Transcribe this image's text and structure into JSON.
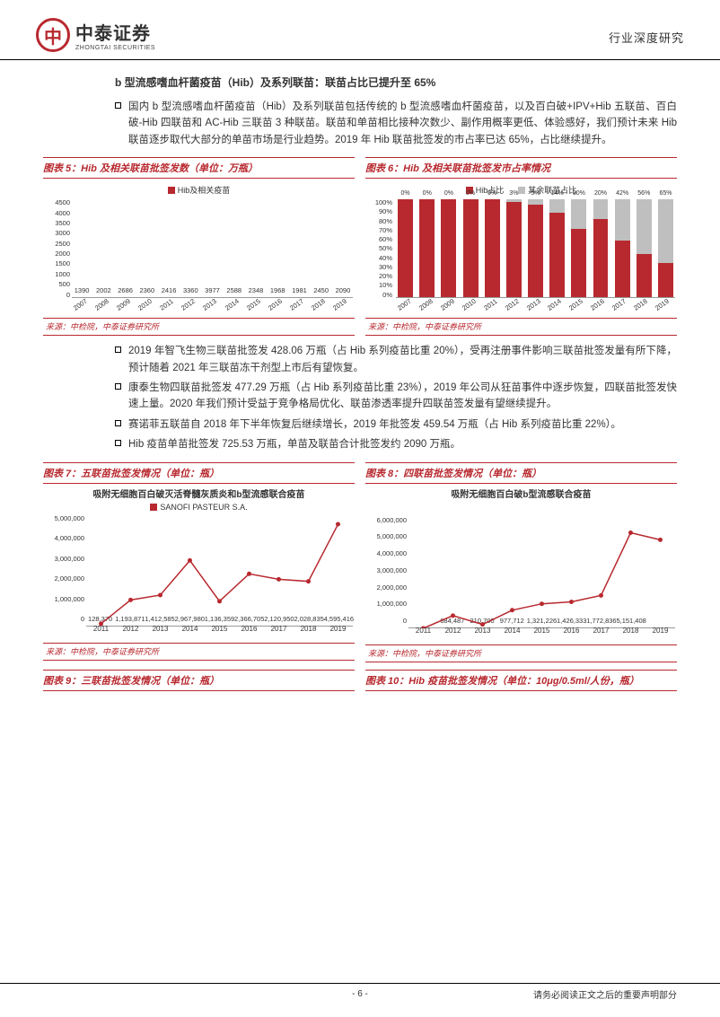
{
  "header": {
    "company_cn": "中泰证券",
    "company_en": "ZHONGTAI SECURITIES",
    "category": "行业深度研究"
  },
  "colors": {
    "brand": "#b8292f",
    "grey": "#bfbfbf",
    "text": "#333333"
  },
  "section_title": "b 型流感嗜血杆菌疫苗（Hib）及系列联苗：联苗占比已提升至 65%",
  "para1": "国内 b 型流感嗜血杆菌疫苗（Hib）及系列联苗包括传统的 b 型流感嗜血杆菌疫苗，以及百白破+IPV+Hib 五联苗、百白破-Hib 四联苗和 AC-Hib 三联苗 3 种联苗。联苗和单苗相比接种次数少、副作用概率更低、体验感好，我们预计未来 Hib 联苗逐步取代大部分的单苗市场是行业趋势。2019 年 Hib 联苗批签发的市占率已达 65%，占比继续提升。",
  "bullets2": [
    "2019 年智飞生物三联苗批签发 428.06 万瓶（占 Hib 系列疫苗比重 20%），受再注册事件影响三联苗批签发量有所下降，预计随着 2021 年三联苗冻干剂型上市后有望恢复。",
    "康泰生物四联苗批签发 477.29 万瓶（占 Hib 系列疫苗比重 23%），2019 年公司从狂苗事件中逐步恢复，四联苗批签发快速上量。2020 年我们预计受益于竞争格局优化、联苗渗透率提升四联苗签发量有望继续提升。",
    "赛诺菲五联苗自 2018 年下半年恢复后继续增长，2019 年批签发 459.54 万瓶（占 Hib 系列疫苗比重 22%）。",
    "Hib 疫苗单苗批签发 725.53 万瓶，单苗及联苗合计批签发约 2090 万瓶。"
  ],
  "chart5": {
    "title": "图表 5：Hib 及相关联苗批签发数（单位：万瓶）",
    "legend": "Hib及相关疫苗",
    "source": "来源：中检院，中泰证券研究所",
    "type": "bar",
    "ylim": [
      0,
      4500
    ],
    "ytick_step": 500,
    "bar_color": "#b8292f",
    "categories": [
      "2007",
      "2008",
      "2009",
      "2010",
      "2011",
      "2012",
      "2013",
      "2014",
      "2015",
      "2016",
      "2017",
      "2018",
      "2019"
    ],
    "values": [
      1390,
      2002,
      2686,
      2360,
      2416,
      3360,
      3977,
      2588,
      2348,
      1968,
      1981,
      2450,
      2090
    ]
  },
  "chart6": {
    "title": "图表 6：Hib 及相关联苗批签发市占率情况",
    "legend_a": "Hib占比",
    "legend_b": "其余联苗占比",
    "source": "来源：中检院，中泰证券研究所",
    "type": "stacked_bar_pct",
    "ylim": [
      0,
      100
    ],
    "ytick_step": 10,
    "color_a": "#b8292f",
    "color_b": "#bfbfbf",
    "categories": [
      "2007",
      "2008",
      "2009",
      "2010",
      "2011",
      "2012",
      "2013",
      "2014",
      "2015",
      "2016",
      "2017",
      "2018",
      "2019"
    ],
    "b_values": [
      0,
      0,
      0,
      0,
      0,
      3,
      5,
      14,
      30,
      20,
      42,
      56,
      65
    ],
    "show_labels": [
      0,
      0,
      0,
      0,
      0,
      3,
      5,
      14,
      30,
      20,
      42,
      56,
      65
    ]
  },
  "chart7": {
    "title": "图表 7：五联苗批签发情况（单位：瓶）",
    "subtitle": "吸附无细胞百白破灭活脊髓灰质炎和b型流感联合疫苗",
    "legend": "SANOFI PASTEUR S.A.",
    "source": "来源：中检院，中泰证券研究所",
    "type": "bar_line",
    "ylim": [
      0,
      5000000
    ],
    "ytick_step": 1000000,
    "bar_color": "#b8292f",
    "line_color": "#b8292f",
    "categories": [
      "2011",
      "2012",
      "2013",
      "2014",
      "2015",
      "2016",
      "2017",
      "2018",
      "2019"
    ],
    "values": [
      128370,
      1193871,
      1412585,
      2967980,
      1136359,
      2366705,
      2120950,
      2028835,
      4595416
    ]
  },
  "chart8": {
    "title": "图表 8：四联苗批签发情况（单位：瓶）",
    "subtitle": "吸附无细胞百白破b型流感联合疫苗",
    "source": "来源：中检院，中泰证券研究所",
    "type": "bar_line",
    "ylim": [
      0,
      6000000
    ],
    "ytick_step": 1000000,
    "bar_color": "#b8292f",
    "line_color": "#b8292f",
    "categories": [
      "2011",
      "2012",
      "2013",
      "2014",
      "2015",
      "2016",
      "2017",
      "2018",
      "2019"
    ],
    "values": [
      0,
      684487,
      210700,
      977712,
      1321226,
      1426333,
      1772836,
      5151408,
      4772936
    ],
    "labels": [
      "",
      "684,487",
      "210,700",
      "977,712",
      "1,321,226",
      "1,426,333",
      "1,772,836",
      "5,151,408",
      ""
    ]
  },
  "chart9": {
    "title": "图表 9：三联苗批签发情况（单位：瓶）"
  },
  "chart10": {
    "title": "图表 10：Hib 疫苗批签发情况（单位：10μg/0.5ml/人份，瓶）"
  },
  "footer": {
    "page": "- 6 -",
    "disclaimer": "请务必阅读正文之后的重要声明部分"
  }
}
